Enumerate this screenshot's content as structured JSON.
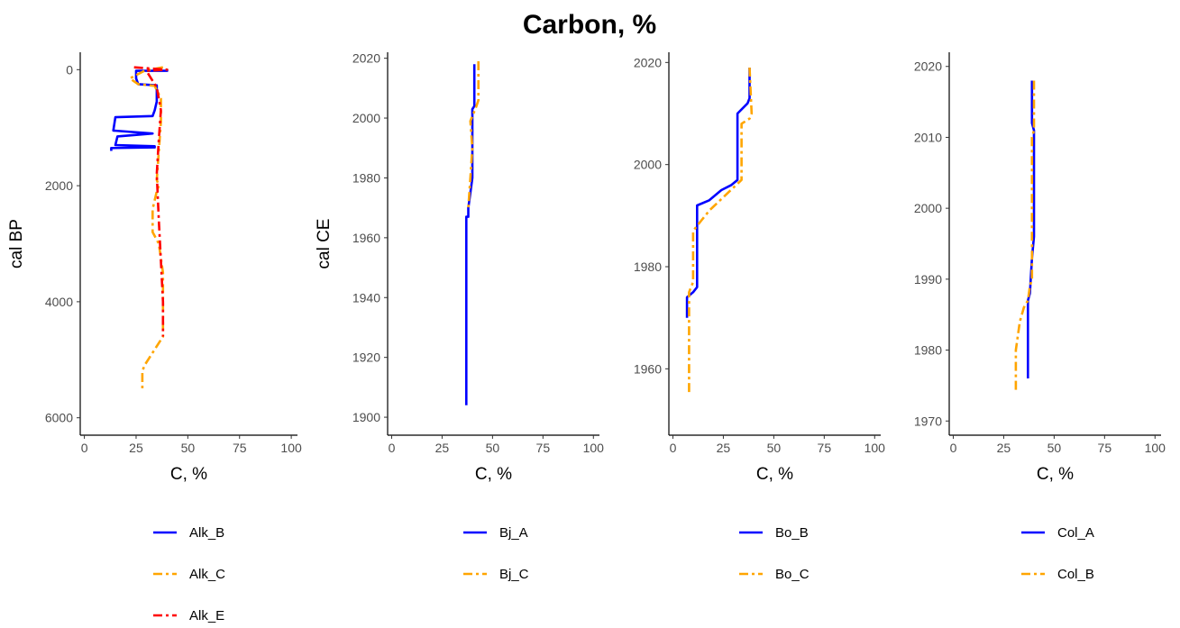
{
  "title": "Carbon, %",
  "colors": {
    "blue": "#0000ff",
    "orange": "#ffa500",
    "red": "#ff0000"
  },
  "chart_data": [
    {
      "type": "line",
      "orientation": "vertical-profile",
      "xlabel": "C, %",
      "ylabel": "cal BP",
      "xlim": [
        -2,
        103
      ],
      "ylim": [
        6300,
        -300
      ],
      "xticks": [
        0,
        25,
        50,
        75,
        100
      ],
      "yticks": [
        0,
        2000,
        4000,
        6000
      ],
      "x_tick_labels": [
        "0",
        "25",
        "50",
        "75",
        "100"
      ],
      "y_tick_labels": [
        "0",
        "2000",
        "4000",
        "6000"
      ],
      "grid": false,
      "legend_position": "bottom",
      "series": [
        {
          "name": "Alk_B",
          "color": "#0000ff",
          "dash": "solid",
          "x": [
            40,
            40,
            25,
            25,
            26,
            35,
            35,
            34,
            33,
            15,
            14,
            33,
            33,
            16,
            15,
            34,
            34,
            13,
            13
          ],
          "y": [
            -10,
            20,
            20,
            150,
            250,
            270,
            550,
            700,
            800,
            820,
            1050,
            1100,
            1100,
            1150,
            1300,
            1320,
            1340,
            1350,
            1400
          ]
        },
        {
          "name": "Alk_C",
          "color": "#ffa500",
          "dash": "dashdot",
          "x": [
            38,
            29,
            22,
            26,
            34,
            37,
            37,
            36,
            35,
            36,
            35,
            33,
            33,
            36,
            38,
            38,
            29,
            28,
            28
          ],
          "y": [
            -40,
            20,
            150,
            250,
            280,
            500,
            900,
            1400,
            1900,
            2000,
            2100,
            2400,
            2800,
            3000,
            3500,
            4600,
            5100,
            5200,
            5500
          ]
        },
        {
          "name": "Alk_E",
          "color": "#ff0000",
          "dash": "dashdot",
          "x": [
            24,
            40,
            30,
            34,
            35,
            37,
            36,
            35,
            36,
            37,
            38,
            38
          ],
          "y": [
            -40,
            0,
            20,
            250,
            300,
            700,
            1200,
            1800,
            2600,
            3300,
            4000,
            4600
          ]
        }
      ]
    },
    {
      "type": "line",
      "orientation": "vertical-profile",
      "xlabel": "C, %",
      "ylabel": "cal CE",
      "xlim": [
        -2,
        103
      ],
      "ylim": [
        1894,
        2022
      ],
      "xticks": [
        0,
        25,
        50,
        75,
        100
      ],
      "yticks": [
        1900,
        1920,
        1940,
        1960,
        1980,
        2000,
        2020
      ],
      "x_tick_labels": [
        "0",
        "25",
        "50",
        "75",
        "100"
      ],
      "y_tick_labels": [
        "1900",
        "1920",
        "1940",
        "1960",
        "1980",
        "2000",
        "2020"
      ],
      "grid": false,
      "legend_position": "bottom",
      "series": [
        {
          "name": "Bj_A",
          "color": "#0000ff",
          "dash": "solid",
          "x": [
            41,
            41,
            40,
            40,
            39,
            38,
            38,
            37,
            37
          ],
          "y": [
            2018,
            2004,
            2003,
            1980,
            1975,
            1970,
            1967,
            1967,
            1904
          ]
        },
        {
          "name": "Bj_C",
          "color": "#ffa500",
          "dash": "dashdot",
          "x": [
            43,
            43,
            42,
            39,
            40,
            39,
            38
          ],
          "y": [
            2019,
            2006,
            2004,
            1999,
            1990,
            1980,
            1970
          ]
        }
      ]
    },
    {
      "type": "line",
      "orientation": "vertical-profile",
      "xlabel": "C, %",
      "ylabel": "",
      "xlim": [
        -2,
        103
      ],
      "ylim": [
        1947,
        2022
      ],
      "xticks": [
        0,
        25,
        50,
        75,
        100
      ],
      "yticks": [
        1960,
        1980,
        2000,
        2020
      ],
      "x_tick_labels": [
        "0",
        "25",
        "50",
        "75",
        "100"
      ],
      "y_tick_labels": [
        "1960",
        "1980",
        "2000",
        "2020"
      ],
      "grid": false,
      "legend_position": "bottom",
      "series": [
        {
          "name": "Bo_B",
          "color": "#0000ff",
          "dash": "solid",
          "x": [
            38,
            38,
            37,
            32,
            32,
            29,
            24,
            18,
            12,
            12,
            10,
            7,
            7
          ],
          "y": [
            2019,
            2013,
            2012,
            2010,
            1997,
            1996,
            1995,
            1993,
            1992,
            1976,
            1975,
            1974,
            1970
          ]
        },
        {
          "name": "Bo_C",
          "color": "#ffa500",
          "dash": "dashdot",
          "x": [
            38,
            39,
            38,
            34,
            34,
            26,
            18,
            14,
            10,
            10,
            8,
            8
          ],
          "y": [
            2019,
            2010,
            2009,
            2008,
            1997,
            1994,
            1991,
            1989,
            1987,
            1977,
            1975,
            1955
          ]
        }
      ]
    },
    {
      "type": "line",
      "orientation": "vertical-profile",
      "xlabel": "C, %",
      "ylabel": "",
      "xlim": [
        -2,
        103
      ],
      "ylim": [
        1968,
        2022
      ],
      "xticks": [
        0,
        25,
        50,
        75,
        100
      ],
      "yticks": [
        1970,
        1980,
        1990,
        2000,
        2010,
        2020
      ],
      "x_tick_labels": [
        "0",
        "25",
        "50",
        "75",
        "100"
      ],
      "y_tick_labels": [
        "1970",
        "1980",
        "1990",
        "2000",
        "2010",
        "2020"
      ],
      "grid": false,
      "legend_position": "bottom",
      "series": [
        {
          "name": "Col_A",
          "color": "#0000ff",
          "dash": "solid",
          "x": [
            39,
            39,
            40,
            40,
            39,
            38,
            37,
            37
          ],
          "y": [
            2018,
            2012,
            2011,
            1996,
            1993,
            1988,
            1987,
            1976
          ]
        },
        {
          "name": "Col_B",
          "color": "#ffa500",
          "dash": "dashdot",
          "x": [
            40,
            40,
            39,
            39,
            38,
            37,
            35,
            33,
            32,
            31,
            31
          ],
          "y": [
            2018,
            2011,
            2010,
            1990,
            1989,
            1987,
            1986,
            1984,
            1982,
            1980,
            1974
          ]
        }
      ]
    }
  ]
}
